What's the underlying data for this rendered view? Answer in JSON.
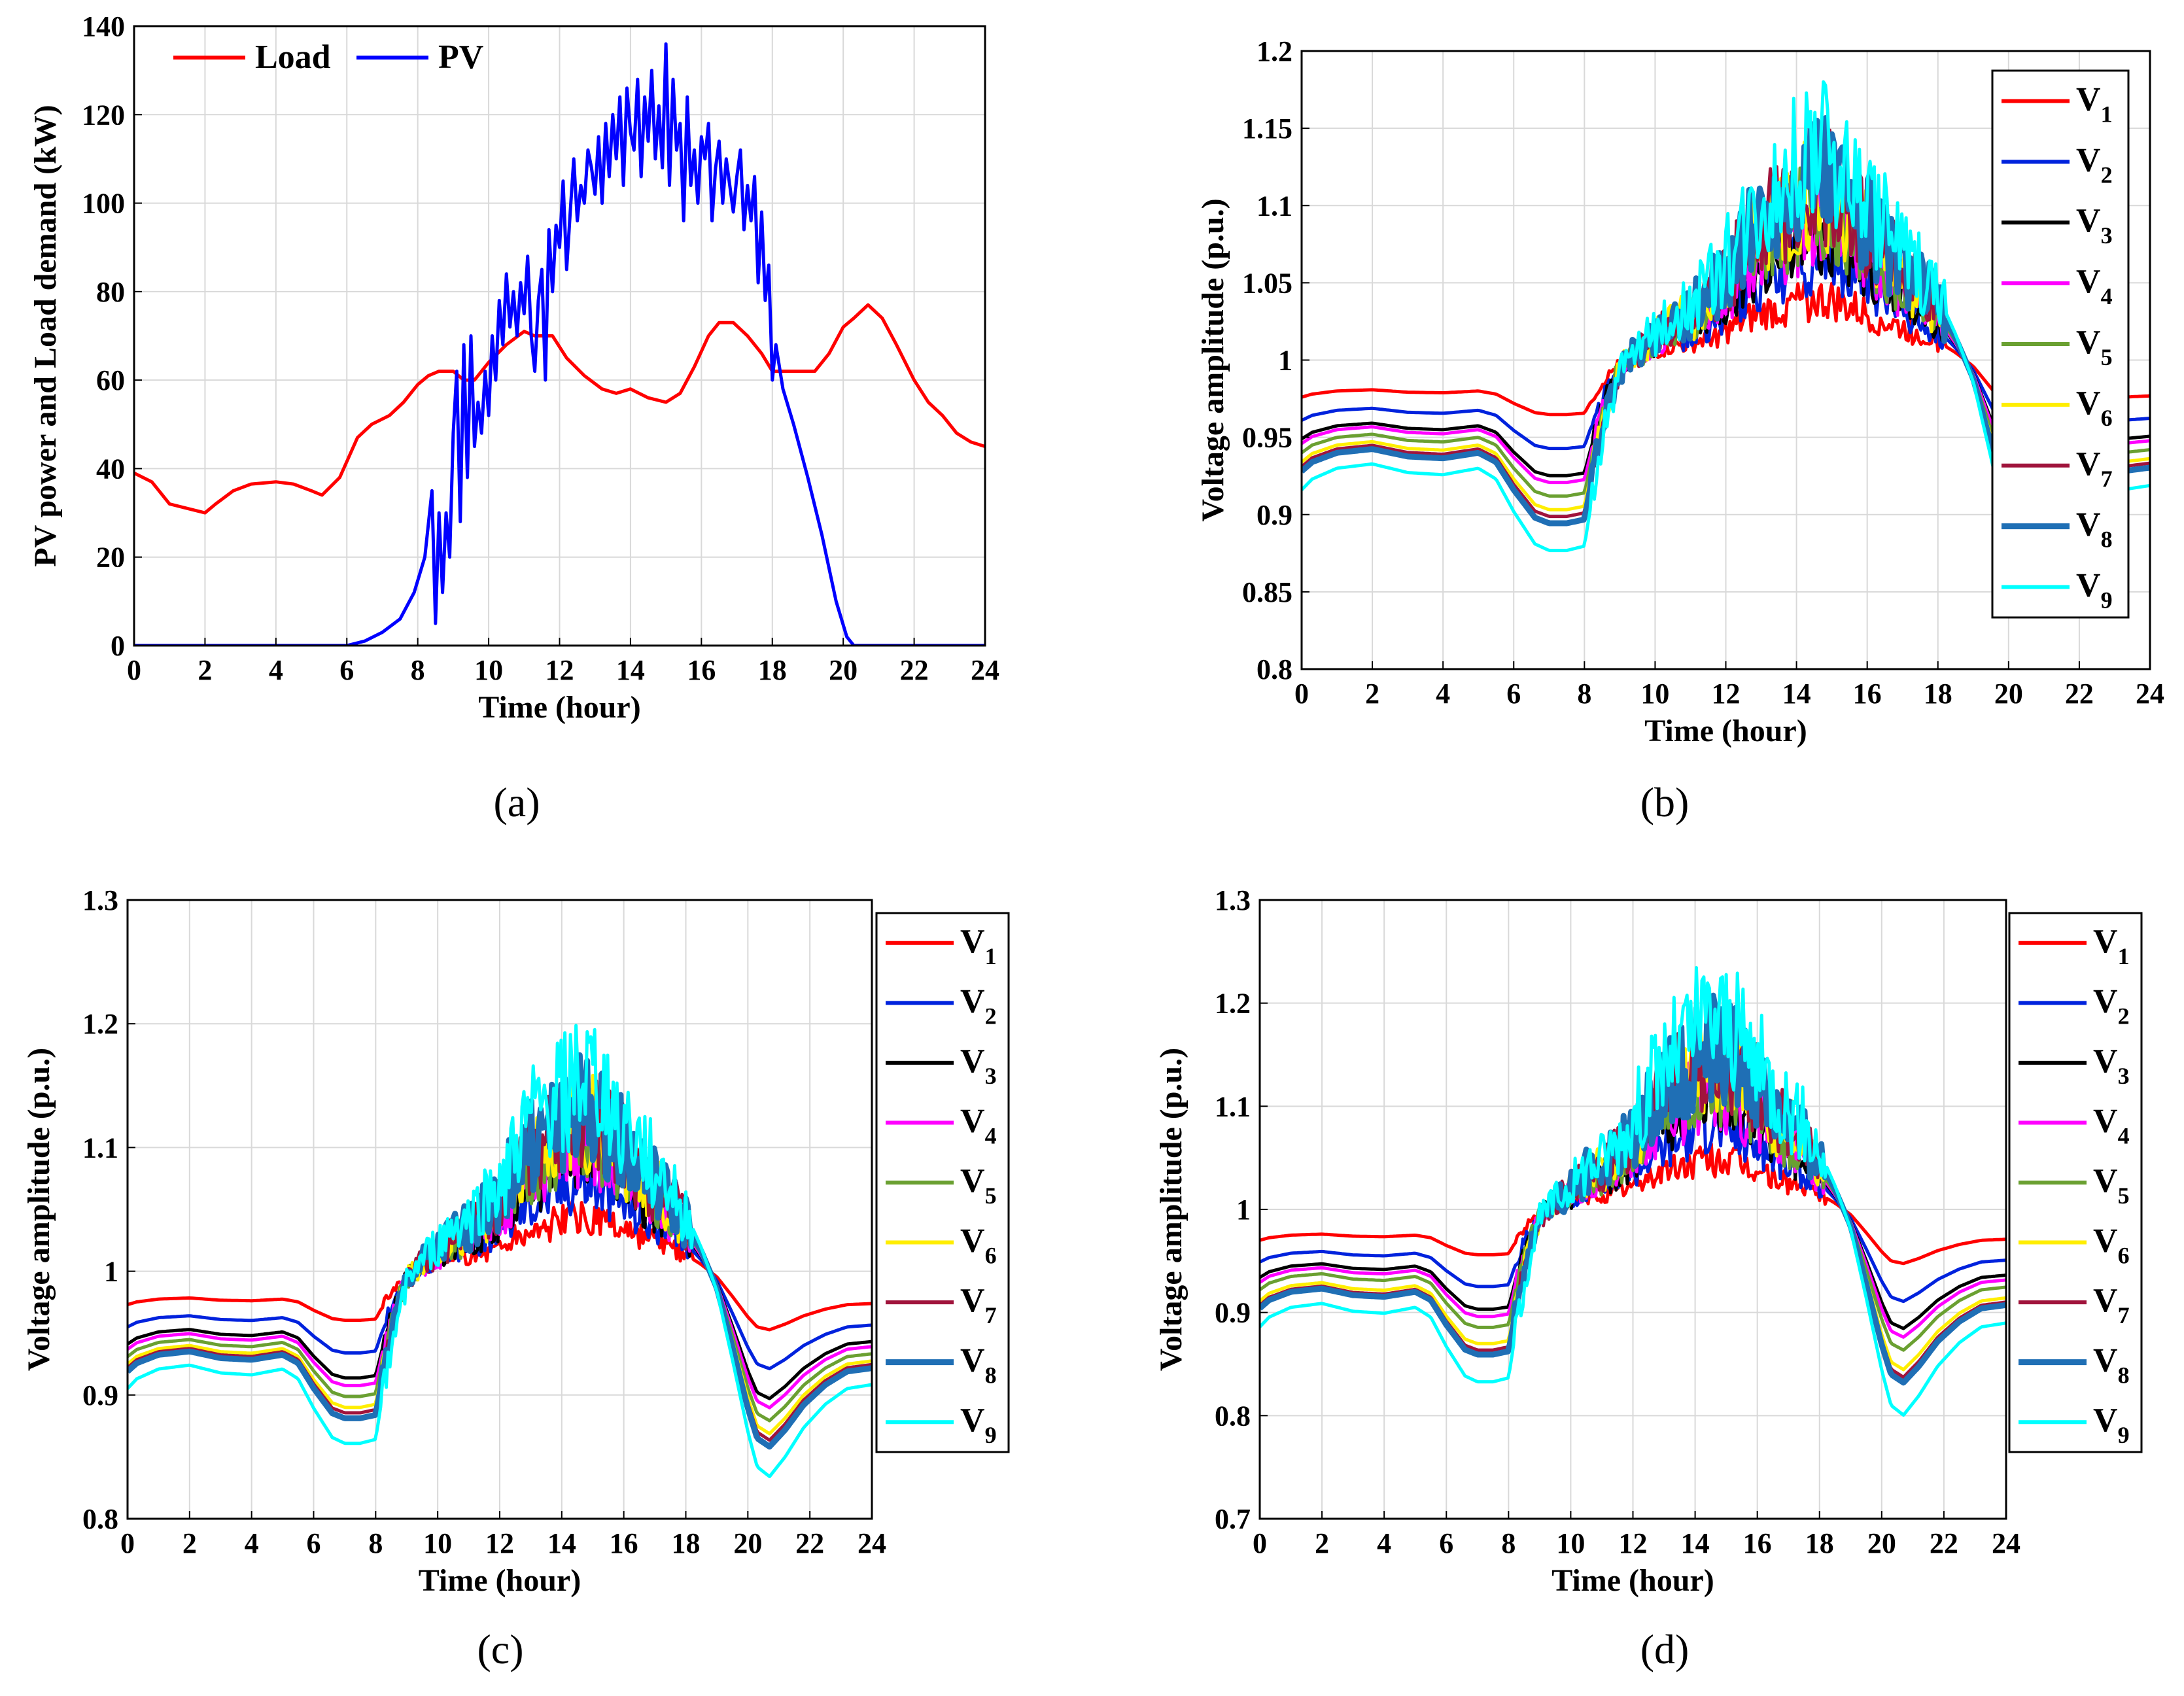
{
  "chart_data": [
    {
      "id": "a",
      "type": "line",
      "caption": "(a)",
      "xlabel": "Time (hour)",
      "ylabel": "PV power and Load demand (kW)",
      "xlim": [
        0,
        24
      ],
      "ylim": [
        0,
        140
      ],
      "xticks": [
        0,
        2,
        4,
        6,
        8,
        10,
        12,
        14,
        16,
        18,
        20,
        22,
        24
      ],
      "yticks": [
        0,
        20,
        40,
        60,
        80,
        100,
        120,
        140
      ],
      "grid": true,
      "legend": "top-left, horizontal",
      "series": [
        {
          "name": "Load",
          "color": "#ff0000",
          "x": [
            0,
            0.5,
            1,
            1.5,
            2,
            2.3,
            2.8,
            3.3,
            4,
            4.5,
            5,
            5.3,
            5.8,
            6.3,
            6.7,
            7.2,
            7.6,
            8,
            8.3,
            8.6,
            9,
            9.3,
            9.6,
            10,
            10.5,
            11,
            11.3,
            11.8,
            12.2,
            12.7,
            13.2,
            13.6,
            14,
            14.5,
            15,
            15.4,
            15.8,
            16.2,
            16.5,
            16.9,
            17.3,
            17.7,
            18,
            18.3,
            18.7,
            19.2,
            19.6,
            20,
            20.3,
            20.7,
            21.1,
            21.5,
            22,
            22.4,
            22.8,
            23.2,
            23.6,
            24
          ],
          "y": [
            39,
            37,
            32,
            31,
            30,
            32,
            35,
            36.5,
            37,
            36.5,
            35,
            34,
            38,
            47,
            50,
            52,
            55,
            59,
            61,
            62,
            62,
            60,
            60,
            64,
            68,
            71,
            70,
            70,
            65,
            61,
            58,
            57,
            58,
            56,
            55,
            57,
            63,
            70,
            73,
            73,
            70,
            66,
            62,
            62,
            62,
            62,
            66,
            72,
            74,
            77,
            74,
            68,
            60,
            55,
            52,
            48,
            46,
            45
          ]
        },
        {
          "name": "PV",
          "color": "#0000ff",
          "x": [
            0,
            6,
            6.5,
            7,
            7.5,
            7.9,
            8.2,
            8.4,
            8.5,
            8.6,
            8.7,
            8.8,
            8.9,
            9,
            9.1,
            9.2,
            9.3,
            9.4,
            9.5,
            9.6,
            9.7,
            9.8,
            9.9,
            10,
            10.1,
            10.2,
            10.3,
            10.4,
            10.5,
            10.6,
            10.7,
            10.8,
            10.9,
            11,
            11.1,
            11.2,
            11.3,
            11.4,
            11.5,
            11.6,
            11.7,
            11.8,
            11.9,
            12,
            12.1,
            12.2,
            12.3,
            12.4,
            12.5,
            12.6,
            12.7,
            12.8,
            12.9,
            13,
            13.1,
            13.2,
            13.3,
            13.4,
            13.5,
            13.6,
            13.7,
            13.8,
            13.9,
            14,
            14.1,
            14.2,
            14.3,
            14.4,
            14.5,
            14.6,
            14.7,
            14.8,
            14.9,
            15,
            15.1,
            15.2,
            15.3,
            15.4,
            15.5,
            15.6,
            15.7,
            15.8,
            15.9,
            16,
            16.1,
            16.2,
            16.3,
            16.4,
            16.5,
            16.6,
            16.7,
            16.8,
            16.9,
            17,
            17.1,
            17.2,
            17.3,
            17.4,
            17.5,
            17.6,
            17.7,
            17.8,
            17.9,
            18,
            18.1,
            18.3,
            18.6,
            19,
            19.4,
            19.8,
            20.1,
            20.3,
            20.6,
            21,
            22,
            23,
            24
          ],
          "y": [
            0,
            0,
            1,
            3,
            6,
            12,
            20,
            35,
            5,
            30,
            12,
            30,
            20,
            48,
            62,
            28,
            68,
            38,
            70,
            45,
            55,
            48,
            62,
            52,
            70,
            60,
            78,
            68,
            84,
            72,
            80,
            70,
            82,
            75,
            88,
            70,
            62,
            78,
            85,
            60,
            94,
            80,
            95,
            90,
            105,
            85,
            98,
            110,
            96,
            104,
            100,
            112,
            108,
            102,
            115,
            100,
            118,
            106,
            120,
            110,
            124,
            104,
            126,
            116,
            112,
            128,
            106,
            124,
            114,
            130,
            110,
            122,
            108,
            136,
            104,
            128,
            112,
            118,
            96,
            124,
            104,
            112,
            100,
            115,
            110,
            118,
            96,
            108,
            114,
            100,
            110,
            104,
            98,
            106,
            112,
            94,
            104,
            96,
            106,
            82,
            98,
            78,
            86,
            60,
            68,
            58,
            50,
            38,
            25,
            10,
            2,
            0,
            0,
            0,
            0,
            0,
            0
          ]
        }
      ]
    },
    {
      "id": "b",
      "type": "line",
      "caption": "(b)",
      "xlabel": "Time (hour)",
      "ylabel": "Voltage amplitude (p.u.)",
      "xlim": [
        0,
        24
      ],
      "ylim": [
        0.8,
        1.2
      ],
      "xticks": [
        0,
        2,
        4,
        6,
        8,
        10,
        12,
        14,
        16,
        18,
        20,
        22,
        24
      ],
      "yticks": [
        0.8,
        0.85,
        0.9,
        0.95,
        1,
        1.05,
        1.1,
        1.15,
        1.2
      ],
      "grid": true,
      "legend": "right, inside top",
      "base_profile": {
        "x": [
          0,
          0.3,
          1,
          2,
          3,
          4,
          5,
          5.5,
          6,
          6.6,
          7,
          7.5,
          8,
          8.3,
          8.6,
          9,
          9.5,
          10,
          10.5,
          11,
          11.5,
          12,
          12.5,
          13,
          13.5,
          14,
          14.5,
          15,
          15.5,
          16,
          16.5,
          17,
          17.5,
          18,
          18.5,
          19,
          19.5,
          20,
          20.3,
          20.7,
          21.2,
          21.8,
          22.5,
          23.2,
          24
        ],
        "dev": [
          -0.6,
          -0.55,
          -0.5,
          -0.48,
          -0.52,
          -0.53,
          -0.5,
          -0.55,
          -0.7,
          -0.85,
          -0.88,
          -0.88,
          -0.86,
          -0.55,
          -0.3,
          -0.05,
          0.05,
          0.12,
          0.22,
          0.26,
          0.35,
          0.45,
          0.62,
          0.75,
          0.82,
          0.92,
          0.98,
          0.96,
          0.85,
          0.75,
          0.62,
          0.52,
          0.42,
          0.3,
          0.12,
          -0.1,
          -0.45,
          -0.82,
          -1.0,
          -1.05,
          -0.95,
          -0.8,
          -0.68,
          -0.6,
          -0.58
        ]
      },
      "series": [
        {
          "name": "V1",
          "color": "#ff0000",
          "amp": 0.04
        },
        {
          "name": "V2",
          "color": "#0022dd",
          "amp": 0.065
        },
        {
          "name": "V3",
          "color": "#000000",
          "amp": 0.085
        },
        {
          "name": "V4",
          "color": "#ff00ff",
          "amp": 0.09
        },
        {
          "name": "V5",
          "color": "#6aa031",
          "amp": 0.1
        },
        {
          "name": "V6",
          "color": "#ffee00",
          "amp": 0.11
        },
        {
          "name": "V7",
          "color": "#a0143c",
          "amp": 0.115
        },
        {
          "name": "V8",
          "color": "#1f6fb5",
          "amp": 0.12
        },
        {
          "name": "V9",
          "color": "#00ffff",
          "amp": 0.14
        }
      ]
    },
    {
      "id": "c",
      "type": "line",
      "caption": "(c)",
      "xlabel": "Time (hour)",
      "ylabel": "Voltage amplitude (p.u.)",
      "xlim": [
        0,
        24
      ],
      "ylim": [
        0.8,
        1.3
      ],
      "xticks": [
        0,
        2,
        4,
        6,
        8,
        10,
        12,
        14,
        16,
        18,
        20,
        22,
        24
      ],
      "yticks": [
        0.8,
        0.9,
        1,
        1.1,
        1.2,
        1.3
      ],
      "grid": true,
      "legend": "right, outside",
      "base_profile": {
        "x": [
          0,
          0.3,
          1,
          2,
          3,
          4,
          5,
          5.5,
          6,
          6.6,
          7,
          7.5,
          8,
          8.3,
          8.6,
          9,
          9.5,
          10,
          10.5,
          11,
          11.5,
          12,
          12.5,
          13,
          13.5,
          14,
          14.5,
          15,
          15.5,
          16,
          16.5,
          17,
          17.5,
          18,
          18.5,
          19,
          19.5,
          20,
          20.3,
          20.7,
          21.2,
          21.8,
          22.5,
          23.2,
          24
        ],
        "dev": [
          -0.6,
          -0.55,
          -0.5,
          -0.48,
          -0.52,
          -0.53,
          -0.5,
          -0.55,
          -0.7,
          -0.85,
          -0.88,
          -0.88,
          -0.86,
          -0.55,
          -0.3,
          -0.05,
          0.05,
          0.12,
          0.22,
          0.26,
          0.35,
          0.45,
          0.62,
          0.75,
          0.82,
          0.92,
          0.98,
          0.96,
          0.85,
          0.75,
          0.62,
          0.52,
          0.42,
          0.3,
          0.12,
          -0.1,
          -0.45,
          -0.82,
          -1.0,
          -1.05,
          -0.95,
          -0.8,
          -0.68,
          -0.6,
          -0.58
        ]
      },
      "series": [
        {
          "name": "V1",
          "color": "#ff0000",
          "amp": 0.045
        },
        {
          "name": "V2",
          "color": "#0022dd",
          "amp": 0.075
        },
        {
          "name": "V3",
          "color": "#000000",
          "amp": 0.098
        },
        {
          "name": "V4",
          "color": "#ff00ff",
          "amp": 0.105
        },
        {
          "name": "V5",
          "color": "#6aa031",
          "amp": 0.115
        },
        {
          "name": "V6",
          "color": "#ffee00",
          "amp": 0.125
        },
        {
          "name": "V7",
          "color": "#a0143c",
          "amp": 0.13
        },
        {
          "name": "V8",
          "color": "#1f6fb5",
          "amp": 0.135
        },
        {
          "name": "V9",
          "color": "#00ffff",
          "amp": 0.158
        }
      ]
    },
    {
      "id": "d",
      "type": "line",
      "caption": "(d)",
      "xlabel": "Time (hour)",
      "ylabel": "Voltage amplitude (p.u.)",
      "xlim": [
        0,
        24
      ],
      "ylim": [
        0.7,
        1.3
      ],
      "xticks": [
        0,
        2,
        4,
        6,
        8,
        10,
        12,
        14,
        16,
        18,
        20,
        22,
        24
      ],
      "yticks": [
        0.7,
        0.8,
        0.9,
        1,
        1.1,
        1.2,
        1.3
      ],
      "grid": true,
      "legend": "right, outside",
      "base_profile": {
        "x": [
          0,
          0.3,
          1,
          2,
          3,
          4,
          5,
          5.5,
          6,
          6.6,
          7,
          7.5,
          8,
          8.3,
          8.6,
          9,
          9.5,
          10,
          10.5,
          11,
          11.5,
          12,
          12.5,
          13,
          13.5,
          14,
          14.5,
          15,
          15.5,
          16,
          16.5,
          17,
          17.5,
          18,
          18.5,
          19,
          19.5,
          20,
          20.3,
          20.7,
          21.2,
          21.8,
          22.5,
          23.2,
          24
        ],
        "dev": [
          -0.6,
          -0.55,
          -0.5,
          -0.48,
          -0.52,
          -0.53,
          -0.5,
          -0.55,
          -0.7,
          -0.85,
          -0.88,
          -0.88,
          -0.86,
          -0.55,
          -0.3,
          -0.05,
          0.05,
          0.12,
          0.22,
          0.26,
          0.35,
          0.45,
          0.62,
          0.75,
          0.82,
          0.92,
          0.98,
          0.96,
          0.85,
          0.75,
          0.62,
          0.52,
          0.42,
          0.3,
          0.12,
          -0.1,
          -0.45,
          -0.82,
          -1.0,
          -1.05,
          -0.95,
          -0.8,
          -0.68,
          -0.6,
          -0.58
        ]
      },
      "series": [
        {
          "name": "V1",
          "color": "#ff0000",
          "amp": 0.05
        },
        {
          "name": "V2",
          "color": "#0022dd",
          "amp": 0.085
        },
        {
          "name": "V3",
          "color": "#000000",
          "amp": 0.11
        },
        {
          "name": "V4",
          "color": "#ff00ff",
          "amp": 0.118
        },
        {
          "name": "V5",
          "color": "#6aa031",
          "amp": 0.13
        },
        {
          "name": "V6",
          "color": "#ffee00",
          "amp": 0.148
        },
        {
          "name": "V7",
          "color": "#a0143c",
          "amp": 0.155
        },
        {
          "name": "V8",
          "color": "#1f6fb5",
          "amp": 0.16
        },
        {
          "name": "V9",
          "color": "#00ffff",
          "amp": 0.19
        }
      ]
    }
  ]
}
